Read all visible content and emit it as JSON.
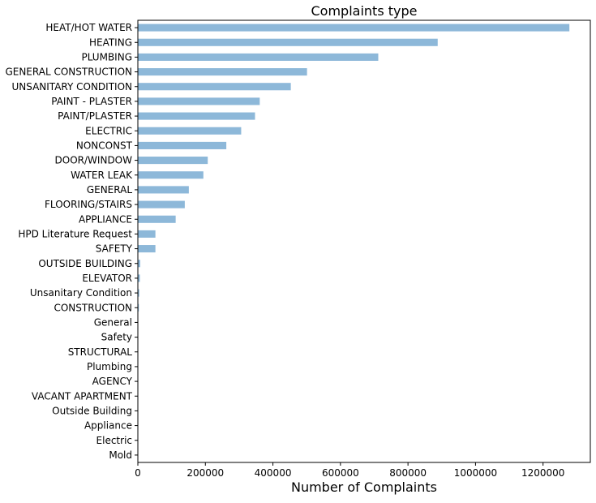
{
  "chart_data": {
    "type": "bar",
    "orientation": "horizontal",
    "title": "Complaints type",
    "xlabel": "Number of Complaints",
    "ylabel": "",
    "xlim": [
      0,
      1340000
    ],
    "xticks": [
      0,
      200000,
      400000,
      600000,
      800000,
      1000000,
      1200000
    ],
    "xtick_labels": [
      "0",
      "200000",
      "400000",
      "600000",
      "800000",
      "1000000",
      "1200000"
    ],
    "grid": false,
    "legend": false,
    "bar_color": "#8db8d9",
    "categories": [
      "HEAT/HOT WATER",
      "HEATING",
      "PLUMBING",
      "GENERAL CONSTRUCTION",
      "UNSANITARY CONDITION",
      "PAINT - PLASTER",
      "PAINT/PLASTER",
      "ELECTRIC",
      "NONCONST",
      "DOOR/WINDOW",
      "WATER LEAK",
      "GENERAL",
      "FLOORING/STAIRS",
      "APPLIANCE",
      "HPD Literature Request",
      "SAFETY",
      "OUTSIDE BUILDING",
      "ELEVATOR",
      "Unsanitary Condition",
      "CONSTRUCTION",
      "General",
      "Safety",
      "STRUCTURAL",
      "Plumbing",
      "AGENCY",
      "VACANT APARTMENT",
      "Outside Building",
      "Appliance",
      "Electric",
      "Mold"
    ],
    "values": [
      1278000,
      888000,
      712000,
      501000,
      453000,
      361000,
      347000,
      306000,
      262000,
      207000,
      194000,
      151000,
      139000,
      112000,
      52000,
      52000,
      7000,
      6000,
      4000,
      3000,
      1000,
      800,
      600,
      500,
      400,
      300,
      200,
      150,
      100,
      50
    ]
  }
}
